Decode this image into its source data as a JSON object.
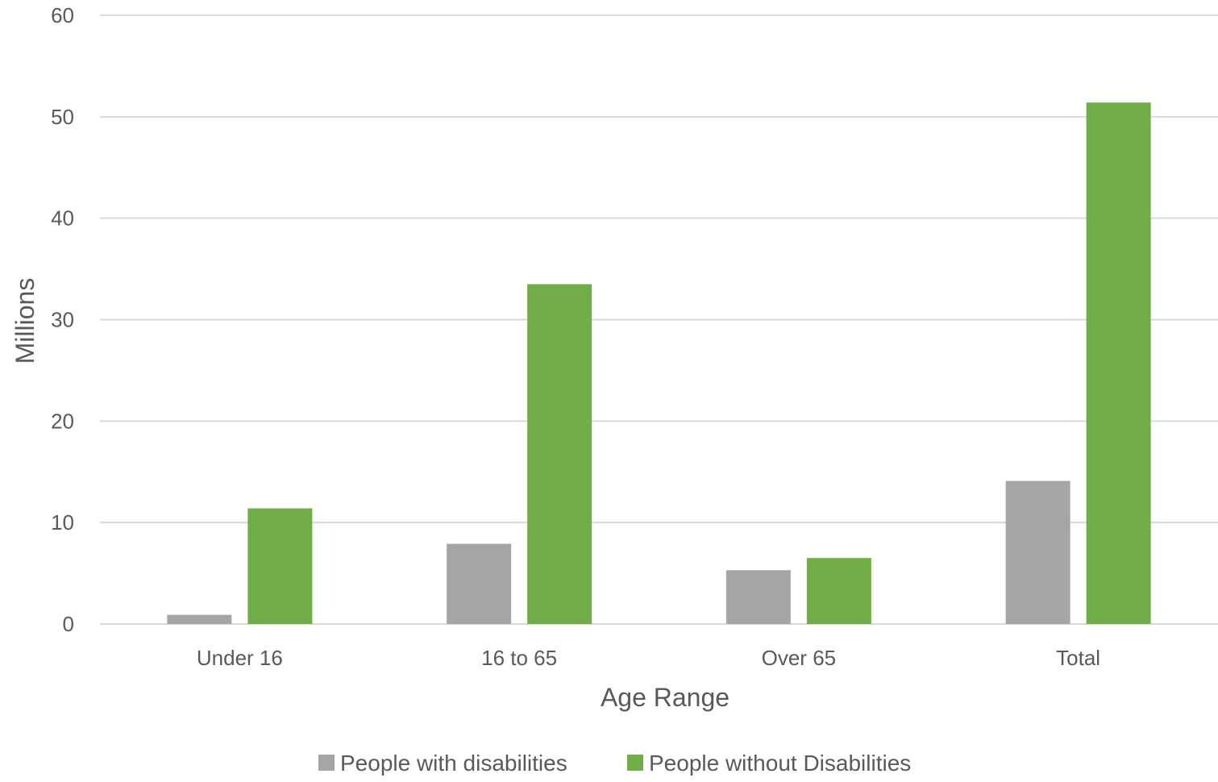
{
  "chart_data": {
    "type": "bar",
    "title": "",
    "xlabel": "Age Range",
    "ylabel": "Millions",
    "categories": [
      "Under 16",
      "16 to 65",
      "Over 65",
      "Total"
    ],
    "series": [
      {
        "name": "People with disabilities",
        "values": [
          0.9,
          7.9,
          5.3,
          14.1
        ],
        "color": "#a5a5a5"
      },
      {
        "name": "People without Disabilities",
        "values": [
          11.4,
          33.5,
          6.5,
          51.4
        ],
        "color": "#70ad47"
      }
    ],
    "ylim": [
      0,
      60
    ],
    "yticks": [
      0,
      10,
      20,
      30,
      40,
      50,
      60
    ],
    "grid": true,
    "legend_position": "bottom"
  }
}
